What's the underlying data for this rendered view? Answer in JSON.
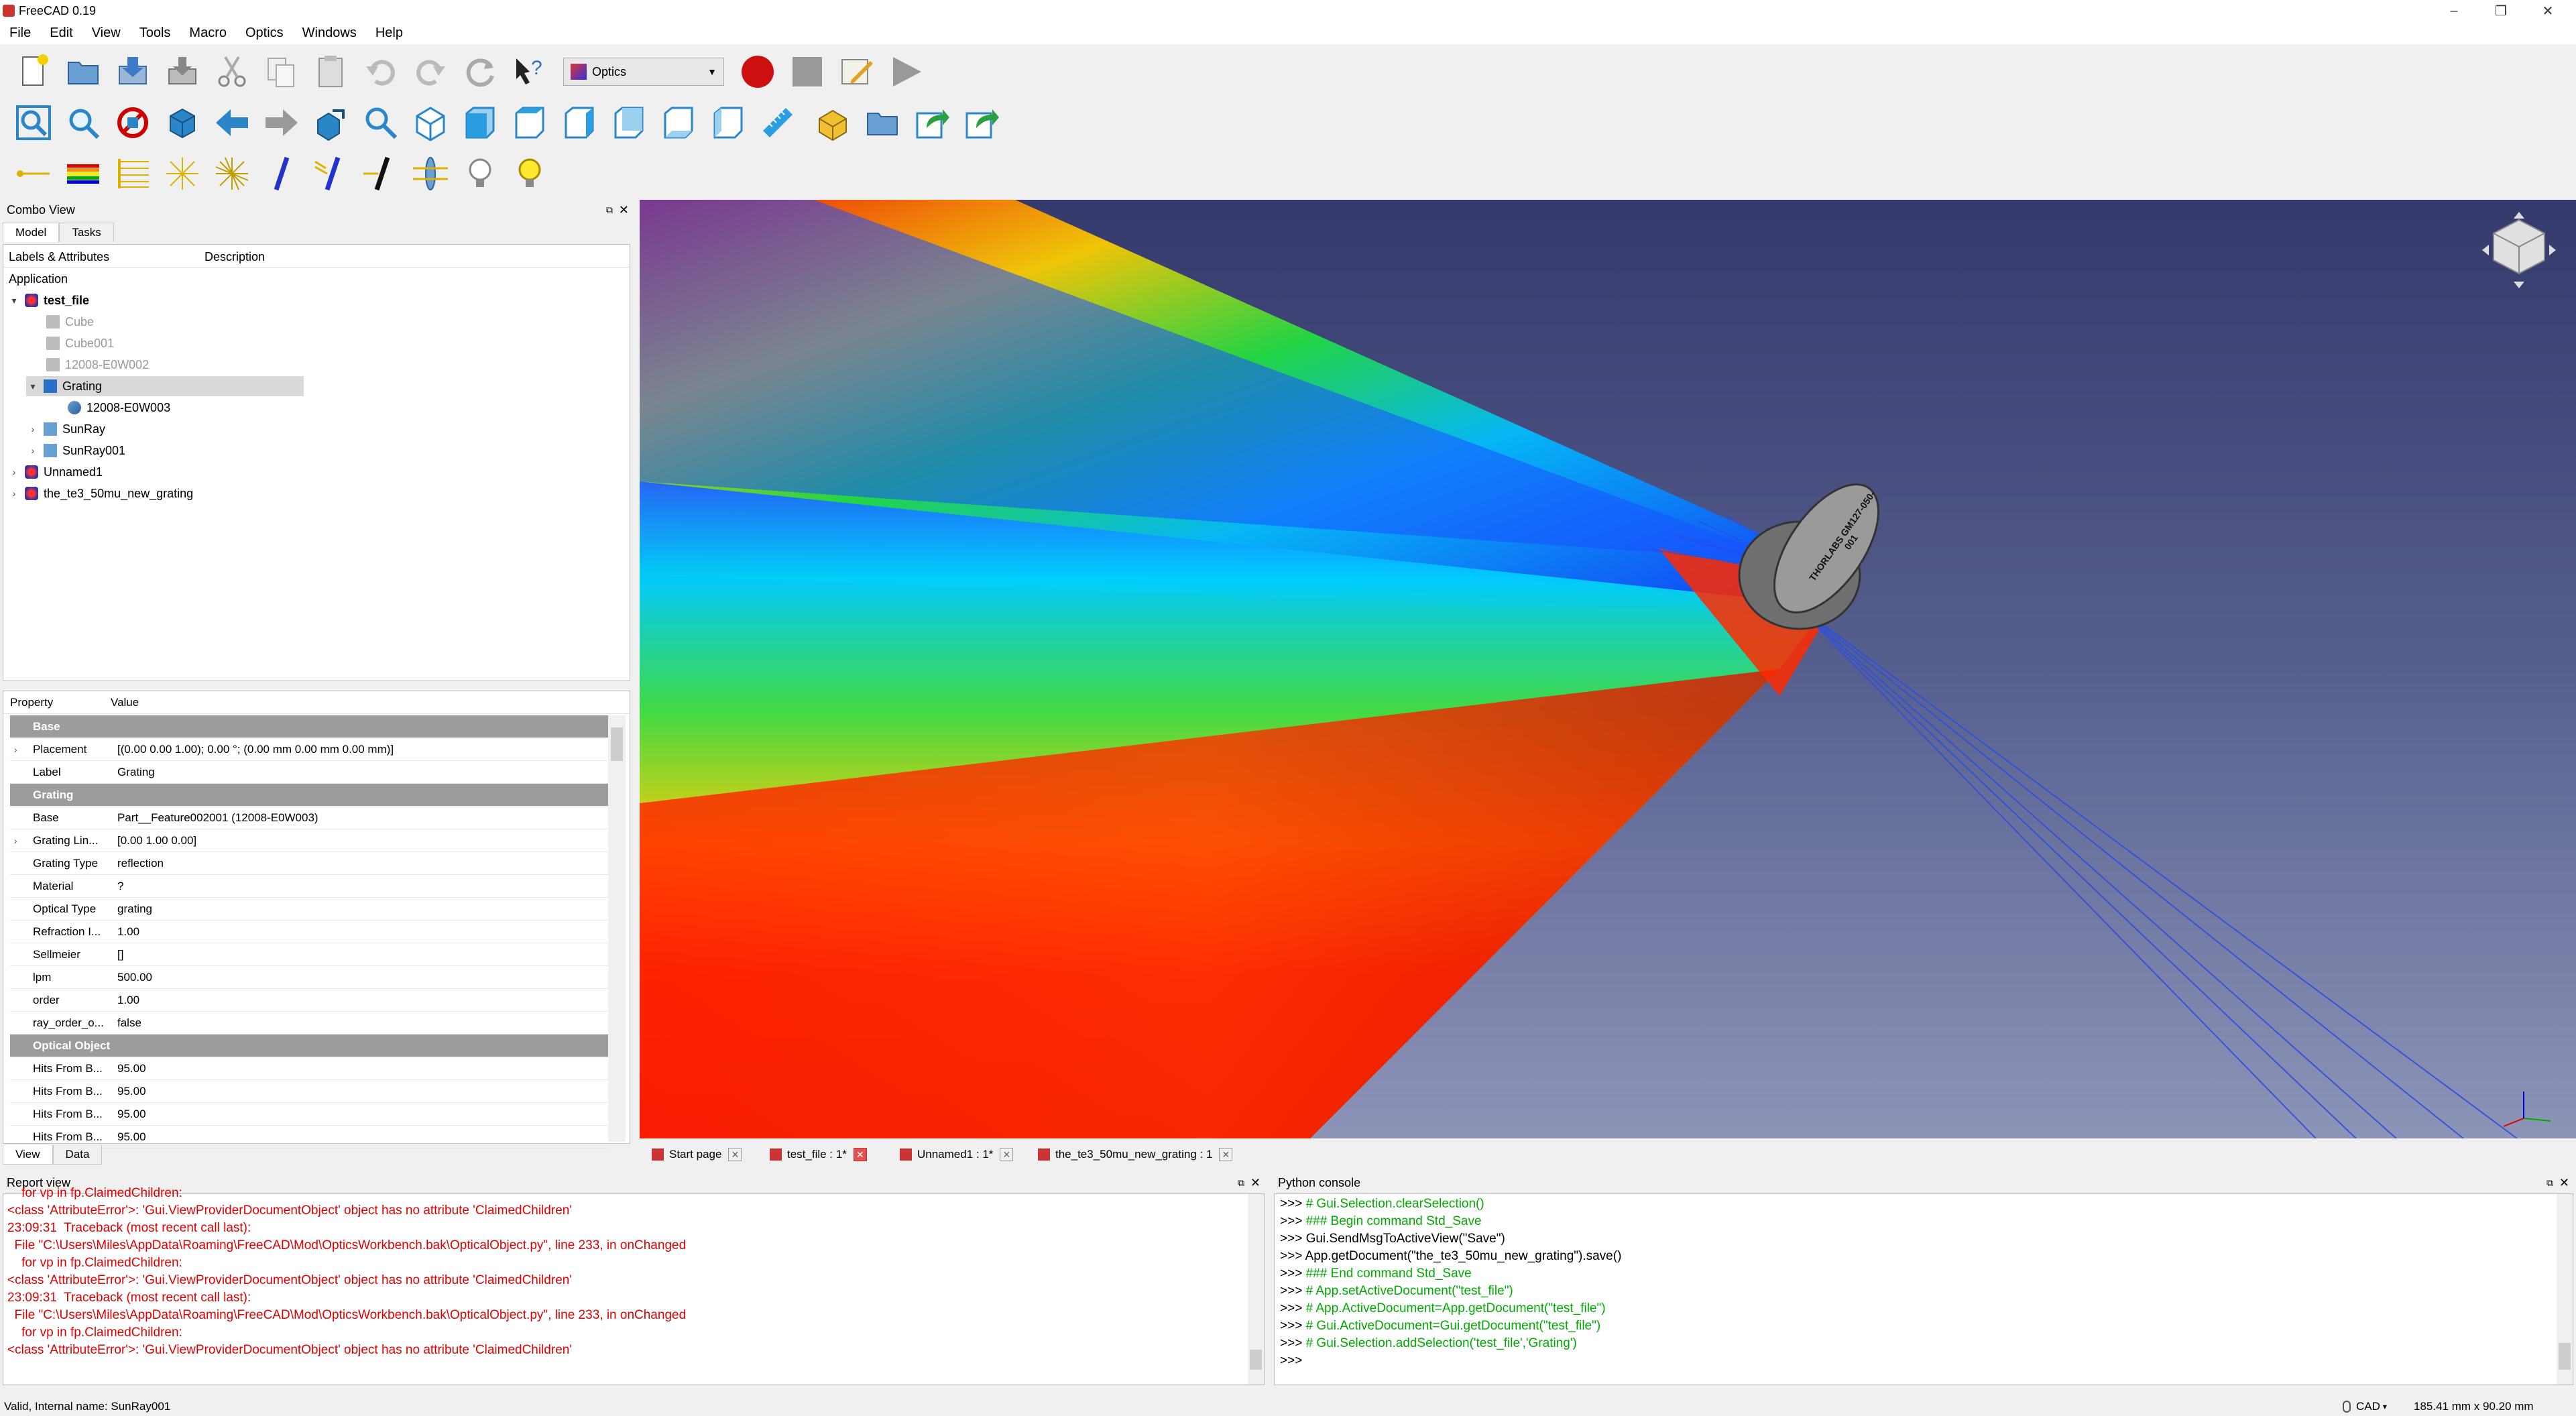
{
  "window": {
    "title": "FreeCAD 0.19",
    "min": "–",
    "restore": "❐",
    "close": "✕"
  },
  "menu": [
    "File",
    "Edit",
    "View",
    "Tools",
    "Macro",
    "Optics",
    "Windows",
    "Help"
  ],
  "toolbar": {
    "workbench": "Optics",
    "row1_icons": [
      "new-document-icon",
      "open-icon",
      "save-icon",
      "save-as-icon",
      "cut-icon",
      "copy-icon",
      "paste-icon",
      "undo-icon",
      "redo-icon",
      "refresh-icon",
      "whats-this-icon"
    ],
    "macro_icons": [
      "record-macro-icon",
      "stop-macro-icon",
      "edit-macro-icon",
      "run-macro-icon"
    ],
    "row2_icons": [
      "fit-all-icon",
      "fit-selection-icon",
      "draw-style-icon",
      "bounding-box-icon",
      "back-icon",
      "forward-icon",
      "sync-view-icon",
      "zoom-icon",
      "isometric-icon",
      "front-view-icon",
      "top-view-icon",
      "right-view-icon",
      "rear-view-icon",
      "bottom-view-icon",
      "left-view-icon",
      "measure-icon",
      "part-icon",
      "group-icon",
      "link-icon",
      "link-actions-icon"
    ],
    "row3_icons": [
      "ray-icon",
      "sun-ray-icon",
      "rays-icon",
      "radial-beam-icon",
      "radial-beam-2-icon",
      "mirror-icon",
      "grating-icon",
      "absorber-icon",
      "lens-icon",
      "off-icon",
      "on-icon"
    ]
  },
  "combo_view": {
    "title": "Combo View",
    "tabs": [
      "Model",
      "Tasks"
    ],
    "tree_header": {
      "col1": "Labels & Attributes",
      "col2": "Description"
    },
    "section": "Application",
    "tree": [
      {
        "label": "test_file",
        "level": 0,
        "expander": "▾",
        "bold": true,
        "greyed": false
      },
      {
        "label": "Cube",
        "level": 1,
        "expander": "",
        "bold": false,
        "greyed": true
      },
      {
        "label": "Cube001",
        "level": 1,
        "expander": "",
        "bold": false,
        "greyed": true
      },
      {
        "label": "12008-E0W002",
        "level": 1,
        "expander": "",
        "bold": false,
        "greyed": true
      },
      {
        "label": "Grating",
        "level": 1,
        "expander": "▾",
        "bold": false,
        "greyed": false,
        "selected": true
      },
      {
        "label": "12008-E0W003",
        "level": 2,
        "expander": "",
        "bold": false,
        "greyed": false
      },
      {
        "label": "SunRay",
        "level": 1,
        "expander": "›",
        "bold": false,
        "greyed": false
      },
      {
        "label": "SunRay001",
        "level": 1,
        "expander": "›",
        "bold": false,
        "greyed": false
      },
      {
        "label": "Unnamed1",
        "level": 0,
        "expander": "›",
        "bold": false,
        "greyed": false
      },
      {
        "label": "the_te3_50mu_new_grating",
        "level": 0,
        "expander": "›",
        "bold": false,
        "greyed": false
      }
    ]
  },
  "properties": {
    "header": {
      "property": "Property",
      "value": "Value"
    },
    "rows": [
      {
        "group": "Base"
      },
      {
        "name": "Placement",
        "value": "[(0.00 0.00 1.00); 0.00 °; (0.00 mm  0.00 mm  0.00 mm)]",
        "expander": "›"
      },
      {
        "name": "Label",
        "value": "Grating"
      },
      {
        "group": "Grating"
      },
      {
        "name": "Base",
        "value": "Part__Feature002001 (12008-E0W003)"
      },
      {
        "name": "Grating Lin...",
        "value": "[0.00 1.00 0.00]",
        "expander": "›"
      },
      {
        "name": "Grating Type",
        "value": "reflection"
      },
      {
        "name": "Material",
        "value": "?"
      },
      {
        "name": "Optical Type",
        "value": "grating"
      },
      {
        "name": "Refraction I...",
        "value": "1.00"
      },
      {
        "name": "Sellmeier",
        "value": "[]"
      },
      {
        "name": "lpm",
        "value": "500.00"
      },
      {
        "name": "order",
        "value": "1.00"
      },
      {
        "name": "ray_order_o...",
        "value": "false"
      },
      {
        "group": "Optical Object"
      },
      {
        "name": "Hits From B...",
        "value": "95.00"
      },
      {
        "name": "Hits From B...",
        "value": "95.00"
      },
      {
        "name": "Hits From B...",
        "value": "95.00"
      },
      {
        "name": "Hits From B...",
        "value": "95.00"
      }
    ],
    "bottom_tabs": [
      "View",
      "Data"
    ]
  },
  "view3d": {
    "label_on_object": "THORLABS GM127-050-001"
  },
  "doc_tabs": [
    {
      "label": "Start page",
      "active": false
    },
    {
      "label": "test_file : 1*",
      "active": true
    },
    {
      "label": "Unnamed1 : 1*",
      "active": false
    },
    {
      "label": "the_te3_50mu_new_grating : 1",
      "active": false
    }
  ],
  "report_view": {
    "title": "Report view",
    "lines": [
      "    for vp in fp.ClaimedChildren:",
      "<class 'AttributeError'>: 'Gui.ViewProviderDocumentObject' object has no attribute 'ClaimedChildren'",
      "23:09:31  Traceback (most recent call last):",
      "  File \"C:\\Users\\Miles\\AppData\\Roaming\\FreeCAD\\Mod\\OpticsWorkbench.bak\\OpticalObject.py\", line 233, in onChanged",
      "    for vp in fp.ClaimedChildren:",
      "<class 'AttributeError'>: 'Gui.ViewProviderDocumentObject' object has no attribute 'ClaimedChildren'",
      "23:09:31  Traceback (most recent call last):",
      "  File \"C:\\Users\\Miles\\AppData\\Roaming\\FreeCAD\\Mod\\OpticsWorkbench.bak\\OpticalObject.py\", line 233, in onChanged",
      "    for vp in fp.ClaimedChildren:",
      "<class 'AttributeError'>: 'Gui.ViewProviderDocumentObject' object has no attribute 'ClaimedChildren'"
    ]
  },
  "python_console": {
    "title": "Python console",
    "lines": [
      {
        "prompt": ">>> ",
        "text": "# Gui.Selection.clearSelection()",
        "kind": "comment"
      },
      {
        "prompt": ">>> ",
        "text": "### Begin command Std_Save",
        "kind": "comment"
      },
      {
        "prompt": ">>> ",
        "text": "Gui.SendMsgToActiveView(\"Save\")",
        "kind": "code"
      },
      {
        "prompt": ">>> ",
        "text": "App.getDocument(\"the_te3_50mu_new_grating\").save()",
        "kind": "code"
      },
      {
        "prompt": ">>> ",
        "text": "### End command Std_Save",
        "kind": "comment"
      },
      {
        "prompt": ">>> ",
        "text": "# App.setActiveDocument(\"test_file\")",
        "kind": "comment"
      },
      {
        "prompt": ">>> ",
        "text": "# App.ActiveDocument=App.getDocument(\"test_file\")",
        "kind": "comment"
      },
      {
        "prompt": ">>> ",
        "text": "# Gui.ActiveDocument=Gui.getDocument(\"test_file\")",
        "kind": "comment"
      },
      {
        "prompt": ">>> ",
        "text": "# Gui.Selection.addSelection('test_file','Grating')",
        "kind": "comment"
      },
      {
        "prompt": ">>> ",
        "text": "",
        "kind": "code"
      }
    ]
  },
  "status": {
    "left": "Valid, Internal name: SunRay001",
    "nav_style": "CAD",
    "dimensions": "185.41 mm x 90.20 mm"
  }
}
